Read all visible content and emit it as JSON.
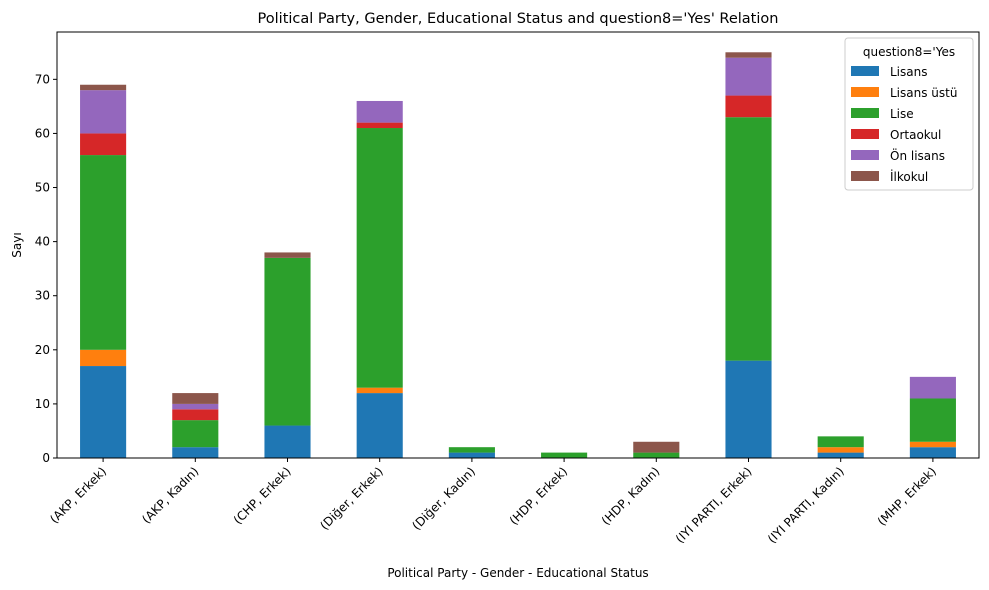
{
  "chart_data": {
    "type": "bar",
    "stacked": true,
    "title": "Political Party, Gender, Educational Status and question8='Yes' Relation",
    "xlabel": "Political Party - Gender - Educational Status",
    "ylabel": "Sayı",
    "ylim": [
      0,
      78.75
    ],
    "yticks": [
      0,
      10,
      20,
      30,
      40,
      50,
      60,
      70
    ],
    "grid": false,
    "legend_title": "question8='Yes",
    "legend_position": "top-right",
    "categories": [
      "(AKP, Erkek)",
      "(AKP, Kadın)",
      "(CHP, Erkek)",
      "(Diğer, Erkek)",
      "(Diğer, Kadın)",
      "(HDP, Erkek)",
      "(HDP, Kadın)",
      "(IYI PARTI, Erkek)",
      "(IYI PARTI, Kadın)",
      "(MHP, Erkek)"
    ],
    "series": [
      {
        "name": "Lisans",
        "color": "#1f77b4",
        "values": [
          17,
          2,
          6,
          12,
          1,
          0,
          0,
          18,
          1,
          2
        ]
      },
      {
        "name": "Lisans üstü",
        "color": "#ff7f0e",
        "values": [
          3,
          0,
          0,
          1,
          0,
          0,
          0,
          0,
          1,
          1
        ]
      },
      {
        "name": "Lise",
        "color": "#2ca02c",
        "values": [
          36,
          5,
          31,
          48,
          1,
          1,
          1,
          45,
          2,
          8
        ]
      },
      {
        "name": "Ortaokul",
        "color": "#d62728",
        "values": [
          4,
          2,
          0,
          1,
          0,
          0,
          0,
          4,
          0,
          0
        ]
      },
      {
        "name": "Ön lisans",
        "color": "#9467bd",
        "values": [
          8,
          1,
          0,
          4,
          0,
          0,
          0,
          7,
          0,
          4
        ]
      },
      {
        "name": "İlkokul",
        "color": "#8c564b",
        "values": [
          1,
          2,
          1,
          0,
          0,
          0,
          2,
          1,
          0,
          0
        ]
      }
    ]
  }
}
